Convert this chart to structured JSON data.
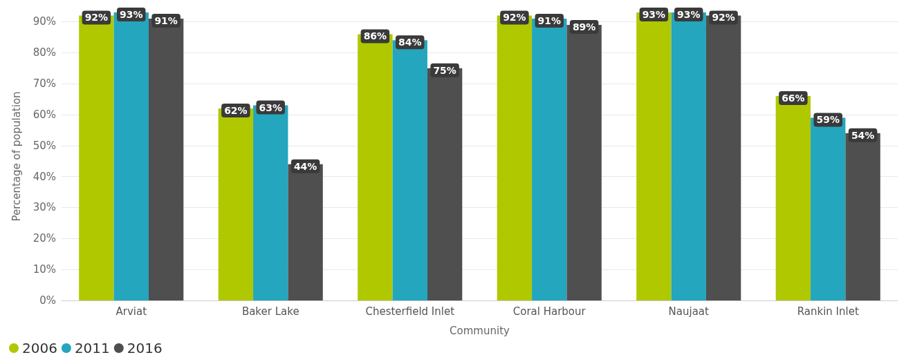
{
  "chart_data": {
    "type": "bar",
    "xlabel": "Community",
    "ylabel": "Percentage of population",
    "categories": [
      "Arviat",
      "Baker Lake",
      "Chesterfield Inlet",
      "Coral Harbour",
      "Naujaat",
      "Rankin Inlet"
    ],
    "series": [
      {
        "name": "2006",
        "color": "#b0c800",
        "values": [
          92,
          62,
          86,
          92,
          93,
          66
        ],
        "value_labels": [
          "92%",
          "62%",
          "86%",
          "92%",
          "93%",
          "66%"
        ]
      },
      {
        "name": "2011",
        "color": "#24a6be",
        "values": [
          93,
          63,
          84,
          91,
          93,
          59
        ],
        "value_labels": [
          "93%",
          "63%",
          "84%",
          "91%",
          "93%",
          "59%"
        ]
      },
      {
        "name": "2016",
        "color": "#4f4f4f",
        "values": [
          91,
          44,
          75,
          89,
          92,
          54
        ],
        "value_labels": [
          "91%",
          "44%",
          "75%",
          "89%",
          "92%",
          "54%"
        ]
      }
    ],
    "ylim": [
      0,
      93
    ],
    "yticks": [
      {
        "value": 0,
        "label": "0%"
      },
      {
        "value": 10,
        "label": "10%"
      },
      {
        "value": 20,
        "label": "20%"
      },
      {
        "value": 30,
        "label": "30%"
      },
      {
        "value": 40,
        "label": "40%"
      },
      {
        "value": 50,
        "label": "50%"
      },
      {
        "value": 60,
        "label": "60%"
      },
      {
        "value": 70,
        "label": "70%"
      },
      {
        "value": 80,
        "label": "80%"
      },
      {
        "value": 90,
        "label": "90%"
      }
    ],
    "grid": "y",
    "legend": "bottom left"
  }
}
